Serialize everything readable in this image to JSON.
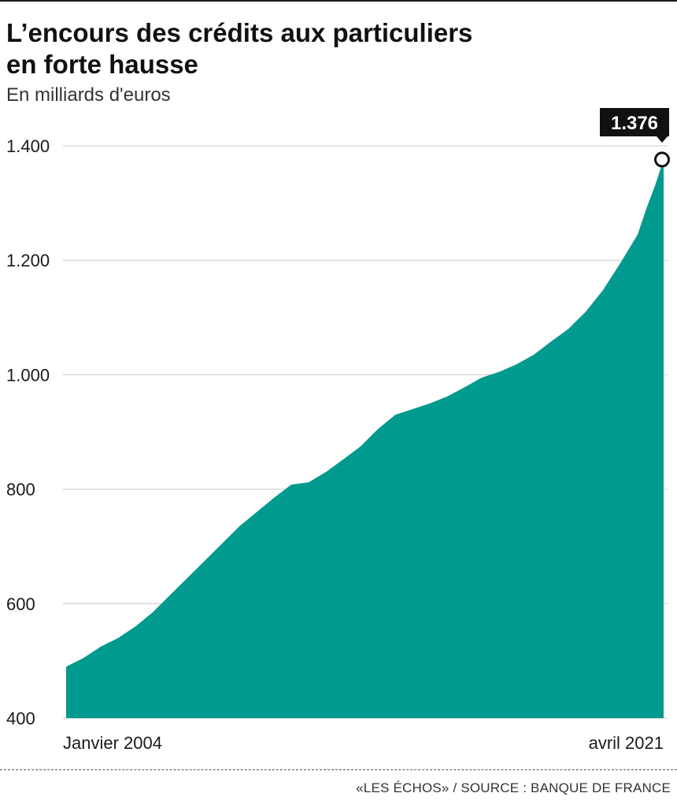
{
  "header": {
    "title_line1": "L’encours des crédits aux particuliers",
    "title_line2": "en forte hausse",
    "subtitle": "En milliards d'euros"
  },
  "footer": {
    "source": "«LES ÉCHOS» / SOURCE : BANQUE DE FRANCE"
  },
  "chart_data": {
    "type": "area",
    "title": "L’encours des crédits aux particuliers en forte hausse",
    "subtitle": "En milliards d'euros",
    "ylim": [
      400,
      1420
    ],
    "yticks": [
      400,
      600,
      800,
      1000,
      1200,
      1400
    ],
    "ytick_labels": [
      "400",
      "600",
      "800",
      "1.000",
      "1.200",
      "1.400"
    ],
    "x_start_label": "Janvier 2004",
    "x_end_label": "avril 2021",
    "x_range": [
      "2004-01",
      "2021-04"
    ],
    "grid": true,
    "fill_color": "#009a8e",
    "highlight": {
      "x": "2021-04",
      "value": 1376,
      "label": "1.376"
    },
    "series": [
      {
        "values": [
          {
            "x": "2004-01",
            "y": 490
          },
          {
            "x": "2004-07",
            "y": 505
          },
          {
            "x": "2005-01",
            "y": 525
          },
          {
            "x": "2005-07",
            "y": 540
          },
          {
            "x": "2006-01",
            "y": 560
          },
          {
            "x": "2006-07",
            "y": 585
          },
          {
            "x": "2007-01",
            "y": 615
          },
          {
            "x": "2007-07",
            "y": 645
          },
          {
            "x": "2008-01",
            "y": 675
          },
          {
            "x": "2008-07",
            "y": 705
          },
          {
            "x": "2009-01",
            "y": 735
          },
          {
            "x": "2009-07",
            "y": 760
          },
          {
            "x": "2010-01",
            "y": 785
          },
          {
            "x": "2010-07",
            "y": 808
          },
          {
            "x": "2011-01",
            "y": 812
          },
          {
            "x": "2011-07",
            "y": 830
          },
          {
            "x": "2012-01",
            "y": 852
          },
          {
            "x": "2012-07",
            "y": 875
          },
          {
            "x": "2013-01",
            "y": 905
          },
          {
            "x": "2013-07",
            "y": 930
          },
          {
            "x": "2014-01",
            "y": 940
          },
          {
            "x": "2014-07",
            "y": 950
          },
          {
            "x": "2015-01",
            "y": 962
          },
          {
            "x": "2015-07",
            "y": 978
          },
          {
            "x": "2016-01",
            "y": 995
          },
          {
            "x": "2016-07",
            "y": 1005
          },
          {
            "x": "2017-01",
            "y": 1018
          },
          {
            "x": "2017-07",
            "y": 1035
          },
          {
            "x": "2018-01",
            "y": 1058
          },
          {
            "x": "2018-07",
            "y": 1080
          },
          {
            "x": "2019-01",
            "y": 1110
          },
          {
            "x": "2019-07",
            "y": 1148
          },
          {
            "x": "2020-01",
            "y": 1195
          },
          {
            "x": "2020-07",
            "y": 1245
          },
          {
            "x": "2020-10",
            "y": 1290
          },
          {
            "x": "2021-01",
            "y": 1330
          },
          {
            "x": "2021-04",
            "y": 1376
          }
        ]
      }
    ]
  }
}
